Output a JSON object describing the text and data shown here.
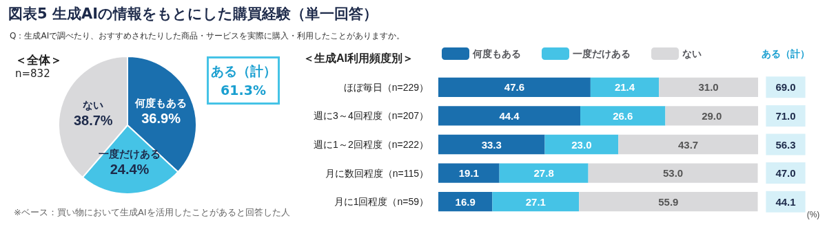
{
  "chart_data": [
    {
      "type": "pie",
      "title": "図表5 生成AIの情報をもとにした購買経験（単一回答）",
      "subtitle": "Q：生成AIで調べたり、おすすめされたりした商品・サービスを実際に購入・利用したことがありますか。",
      "categories": [
        "何度もある",
        "一度だけある",
        "ない"
      ],
      "values": [
        36.9,
        24.4,
        38.7
      ],
      "value_labels": [
        "36.9%",
        "24.4%",
        "38.7%"
      ],
      "colors": [
        "#1a6fae",
        "#45c3e6",
        "#d9d9db"
      ],
      "annotations": [
        "＜全体＞",
        "n=832",
        "ある（計） 61.3%",
        "※ベース：買い物において生成AIを活用したことがあると回答した人"
      ]
    },
    {
      "type": "bar",
      "orientation": "horizontal",
      "stacked": true,
      "legend_title": "＜生成AI利用頻度別＞",
      "legend": "top",
      "tick_labels": "y",
      "xlim": [
        0,
        100
      ],
      "categories": [
        "ほぼ毎日（n=229）",
        "週に3～4回程度（n=207）",
        "週に1～2回程度（n=222）",
        "月に数回程度（n=115）",
        "月に1回程度（n=59）"
      ],
      "series": [
        {
          "name": "何度もある",
          "color": "#1a6fae",
          "values": [
            47.6,
            44.4,
            33.3,
            19.1,
            16.9
          ],
          "value_labels": [
            "47.6",
            "44.4",
            "33.3",
            "19.1",
            "16.9"
          ]
        },
        {
          "name": "一度だけある",
          "color": "#45c3e6",
          "values": [
            21.4,
            26.6,
            23.0,
            27.8,
            27.1
          ],
          "value_labels": [
            "21.4",
            "26.6",
            "23.0",
            "27.8",
            "27.1"
          ]
        },
        {
          "name": "ない",
          "color": "#d9d9db",
          "values": [
            31.0,
            29.0,
            43.7,
            53.0,
            55.9
          ],
          "value_labels": [
            "31.0",
            "29.0",
            "43.7",
            "53.0",
            "55.9"
          ]
        }
      ],
      "annotations": [
        "ある（計）",
        "(%)",
        "69.0",
        "71.0",
        "56.3",
        "47.0",
        "44.1"
      ]
    }
  ]
}
